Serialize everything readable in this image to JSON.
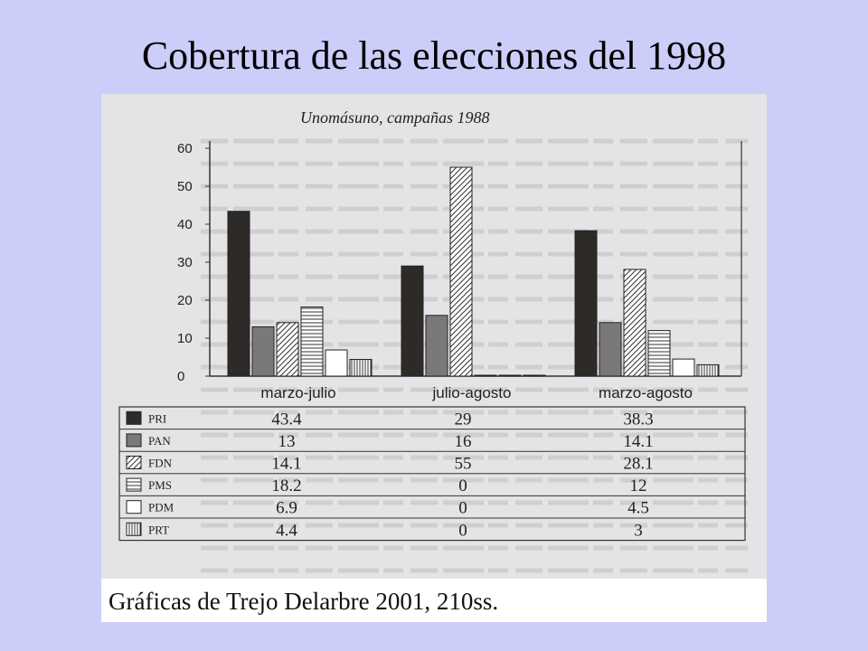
{
  "slide": {
    "title": "Cobertura de las elecciones del 1998",
    "caption": "Gráficas de Trejo Delarbre 2001, 210ss."
  },
  "colors": {
    "background": "#cccdf9",
    "PRI": "#2e2a28",
    "PAN": "#7a7878"
  },
  "chart_data": {
    "type": "bar",
    "title": "Unomásuno, campañas 1988",
    "xlabel": "",
    "ylabel": "",
    "ylim": [
      0,
      60
    ],
    "yticks": [
      "0",
      "10",
      "20",
      "30",
      "40",
      "50",
      "60"
    ],
    "categories": [
      "marzo-julio",
      "julio-agosto",
      "marzo-agosto"
    ],
    "legend_placement": "table-below",
    "series": [
      {
        "name": "PRI",
        "values": [
          43.4,
          29,
          38.3
        ],
        "labels": [
          "43.4",
          "29",
          "38.3"
        ],
        "pattern": "solid-dark"
      },
      {
        "name": "PAN",
        "values": [
          13,
          16,
          14.1
        ],
        "labels": [
          "13",
          "16",
          "14.1"
        ],
        "pattern": "solid-gray"
      },
      {
        "name": "FDN",
        "values": [
          14.1,
          55,
          28.1
        ],
        "labels": [
          "14.1",
          "55",
          "28.1"
        ],
        "pattern": "diagonal-hatch"
      },
      {
        "name": "PMS",
        "values": [
          18.2,
          0,
          12
        ],
        "labels": [
          "18.2",
          "0",
          "12"
        ],
        "pattern": "horizontal-hatch"
      },
      {
        "name": "PDM",
        "values": [
          6.9,
          0,
          4.5
        ],
        "labels": [
          "6.9",
          "0",
          "4.5"
        ],
        "pattern": "white"
      },
      {
        "name": "PRT",
        "values": [
          4.4,
          0,
          3
        ],
        "labels": [
          "4.4",
          "0",
          "3"
        ],
        "pattern": "vertical-hatch"
      }
    ]
  }
}
